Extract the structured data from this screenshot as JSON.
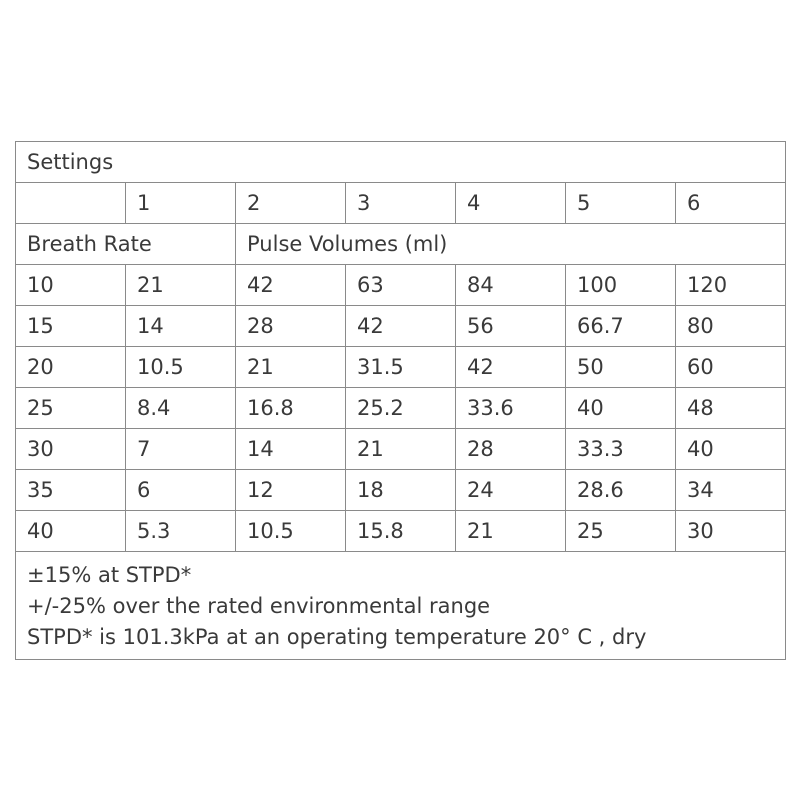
{
  "table": {
    "title": "Settings",
    "setting_numbers": [
      "1",
      "2",
      "3",
      "4",
      "5",
      "6"
    ],
    "breath_rate_label": "Breath Rate",
    "pulse_volumes_label": "Pulse Volumes (ml)",
    "rows": [
      [
        "10",
        "21",
        "42",
        "63",
        "84",
        "100",
        "120"
      ],
      [
        "15",
        "14",
        "28",
        "42",
        "56",
        "66.7",
        "80"
      ],
      [
        "20",
        "10.5",
        "21",
        "31.5",
        "42",
        "50",
        "60"
      ],
      [
        "25",
        "8.4",
        "16.8",
        "25.2",
        "33.6",
        "40",
        "48"
      ],
      [
        "30",
        "7",
        "14",
        "21",
        "28",
        "33.3",
        "40"
      ],
      [
        "35",
        "6",
        "12",
        "18",
        "24",
        "28.6",
        "34"
      ],
      [
        "40",
        "5.3",
        "10.5",
        "15.8",
        "21",
        "25",
        "30"
      ]
    ],
    "notes": [
      "±15% at STPD*",
      "+/-25% over the rated environmental range",
      "STPD* is 101.3kPa at an operating temperature 20° C , dry"
    ]
  }
}
